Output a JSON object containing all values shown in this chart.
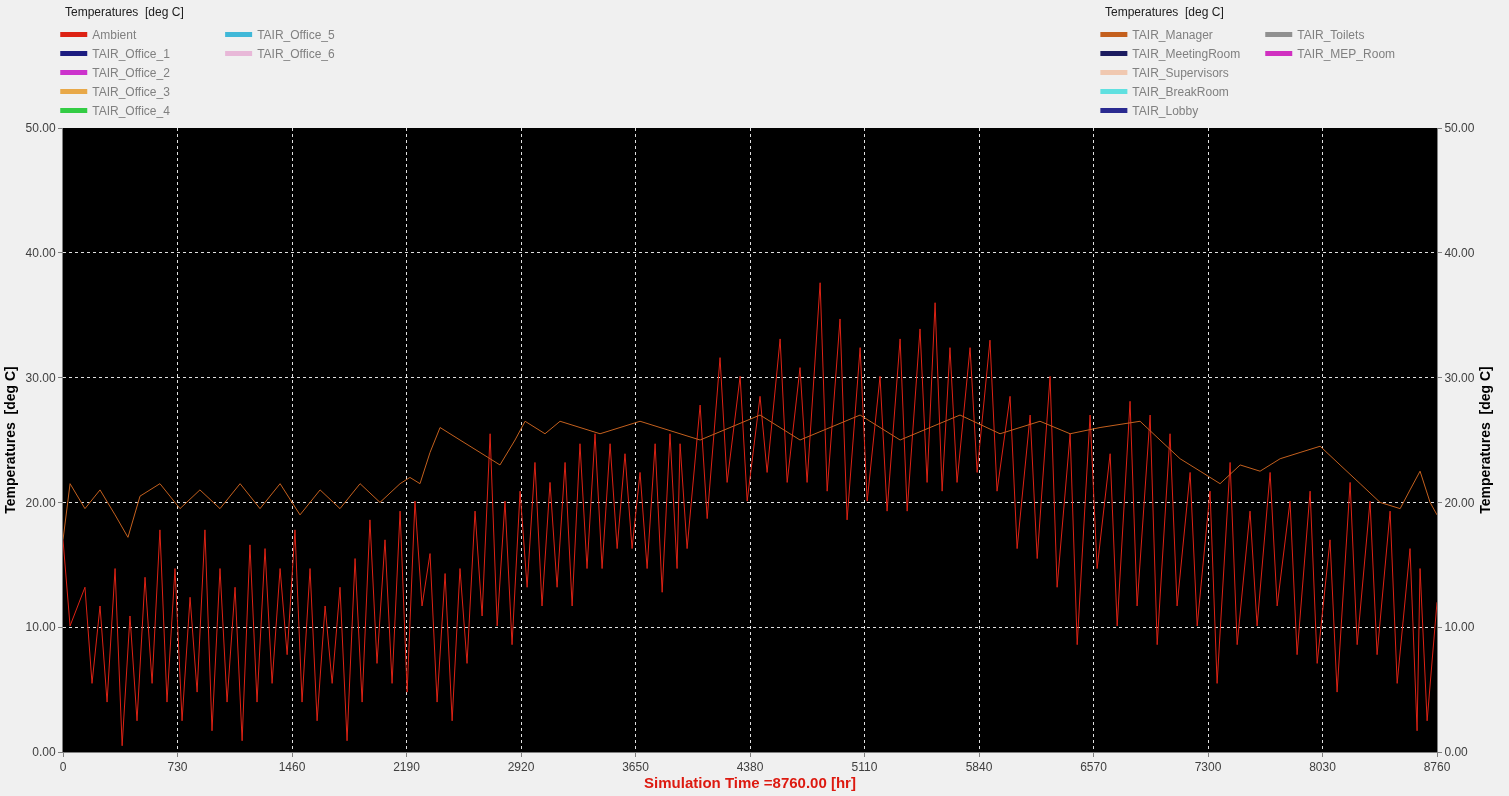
{
  "chart_data": {
    "type": "line",
    "xlabel": "Simulation Time =8760.00 [hr]",
    "ylabel": "Temperatures  [deg C]",
    "y2label": "Temperatures  [deg C]",
    "legend_title": "Temperatures  [deg C]",
    "xlim": [
      0,
      8760
    ],
    "xticks": [
      0,
      730,
      1460,
      2190,
      2920,
      3650,
      4380,
      5110,
      5840,
      6570,
      7300,
      8030,
      8760
    ],
    "ylim": [
      0,
      50
    ],
    "yticks": [
      {
        "value": 0,
        "label": "0.00"
      },
      {
        "value": 10,
        "label": "10.00"
      },
      {
        "value": 20,
        "label": "20.00"
      },
      {
        "value": 30,
        "label": "30.00"
      },
      {
        "value": 40,
        "label": "40.00"
      },
      {
        "value": 50,
        "label": "50.00"
      }
    ],
    "y2lim": [
      0,
      50
    ],
    "y2ticks": [
      {
        "value": 0,
        "label": "0.00"
      },
      {
        "value": 10,
        "label": "10.00"
      },
      {
        "value": 20,
        "label": "20.00"
      },
      {
        "value": 30,
        "label": "30.00"
      },
      {
        "value": 40,
        "label": "40.00"
      },
      {
        "value": 50,
        "label": "50.00"
      }
    ],
    "grid": true,
    "legend": "top",
    "marker": "none",
    "line_style": "solid",
    "series": [
      {
        "name": "Ambient",
        "color": "#dd2214",
        "x": [
          0,
          45,
          140,
          185,
          236,
          281,
          332,
          377,
          427,
          472,
          523,
          568,
          618,
          663,
          714,
          759,
          810,
          855,
          905,
          950,
          1001,
          1046,
          1097,
          1142,
          1192,
          1237,
          1288,
          1333,
          1384,
          1429,
          1479,
          1524,
          1575,
          1620,
          1671,
          1716,
          1766,
          1811,
          1862,
          1907,
          1957,
          2002,
          2053,
          2098,
          2149,
          2194,
          2244,
          2289,
          2340,
          2385,
          2436,
          2481,
          2531,
          2576,
          2627,
          2672,
          2723,
          2768,
          2818,
          2863,
          2914,
          2959,
          3009,
          3054,
          3105,
          3150,
          3201,
          3246,
          3296,
          3341,
          3392,
          3437,
          3488,
          3533,
          3583,
          3628,
          3679,
          3724,
          3775,
          3820,
          3870,
          3915,
          3934,
          3979,
          4062,
          4107,
          4189,
          4234,
          4317,
          4362,
          4444,
          4489,
          4572,
          4617,
          4699,
          4744,
          4827,
          4872,
          4954,
          4999,
          5082,
          5127,
          5209,
          5254,
          5337,
          5382,
          5464,
          5509,
          5560,
          5605,
          5655,
          5700,
          5783,
          5828,
          5910,
          5955,
          6038,
          6083,
          6166,
          6211,
          6293,
          6338,
          6421,
          6466,
          6548,
          6593,
          6676,
          6721,
          6803,
          6848,
          6931,
          6976,
          7058,
          7103,
          7186,
          7231,
          7313,
          7358,
          7441,
          7486,
          7568,
          7613,
          7696,
          7741,
          7823,
          7868,
          7951,
          7996,
          8078,
          8123,
          8206,
          8251,
          8333,
          8378,
          8461,
          8506,
          8588,
          8633,
          8652,
          8697,
          8760
        ],
        "values": [
          17,
          10.1,
          13.2,
          5.5,
          11.7,
          4.0,
          14.7,
          0.5,
          10.9,
          2.5,
          14.0,
          5.5,
          17.8,
          4.0,
          14.7,
          2.5,
          12.4,
          4.8,
          17.8,
          1.7,
          14.7,
          4.0,
          13.2,
          0.9,
          16.6,
          4.0,
          16.3,
          5.5,
          14.7,
          7.8,
          17.8,
          4.0,
          14.7,
          2.5,
          11.7,
          5.5,
          13.2,
          0.9,
          15.5,
          4.0,
          18.6,
          7.1,
          17.0,
          5.5,
          19.3,
          4.8,
          20.1,
          11.7,
          15.9,
          4.0,
          14.3,
          2.5,
          14.7,
          7.1,
          19.3,
          10.9,
          25.5,
          10.1,
          20.1,
          8.6,
          20.9,
          13.2,
          23.2,
          11.7,
          21.6,
          13.2,
          23.2,
          11.7,
          24.7,
          14.7,
          25.5,
          14.7,
          24.7,
          16.3,
          23.9,
          16.3,
          22.4,
          14.7,
          24.7,
          12.8,
          25.5,
          14.7,
          24.7,
          16.3,
          27.8,
          18.7,
          31.6,
          21.6,
          30.1,
          20.1,
          28.5,
          22.4,
          33.1,
          21.6,
          30.8,
          21.6,
          37.6,
          20.9,
          34.7,
          18.6,
          32.4,
          20.1,
          30.1,
          19.3,
          33.1,
          19.3,
          33.9,
          21.6,
          36.0,
          20.9,
          32.4,
          21.6,
          32.4,
          22.4,
          33.0,
          20.9,
          28.5,
          16.3,
          27.0,
          15.5,
          30.1,
          13.2,
          25.5,
          8.6,
          27.0,
          14.7,
          23.9,
          10.1,
          28.1,
          11.7,
          27.0,
          8.6,
          25.5,
          11.7,
          22.4,
          10.1,
          20.9,
          5.5,
          23.2,
          8.6,
          19.3,
          10.1,
          22.4,
          11.7,
          20.1,
          7.8,
          20.9,
          7.1,
          17.0,
          4.8,
          21.6,
          8.6,
          20.1,
          7.8,
          19.3,
          5.5,
          16.3,
          1.7,
          14.7,
          2.5,
          12
        ]
      },
      {
        "name": "TAIR_Office_1",
        "color": "#1c1c80"
      },
      {
        "name": "TAIR_Office_2",
        "color": "#cc33cc"
      },
      {
        "name": "TAIR_Office_3",
        "color": "#e8a848"
      },
      {
        "name": "TAIR_Office_4",
        "color": "#33cc44"
      },
      {
        "name": "TAIR_Office_5",
        "color": "#40b8d8"
      },
      {
        "name": "TAIR_Office_6",
        "color": "#e8b8d8"
      },
      {
        "name": "TAIR_Manager",
        "color": "#c4601e",
        "axis": "y2",
        "x": [
          0,
          45,
          140,
          236,
          332,
          414,
          491,
          618,
          746,
          873,
          1001,
          1129,
          1256,
          1384,
          1511,
          1639,
          1766,
          1894,
          2021,
          2149,
          2212,
          2276,
          2340,
          2404,
          2531,
          2659,
          2786,
          2882,
          2946,
          3073,
          3169,
          3424,
          3679,
          4062,
          4444,
          4699,
          5082,
          5337,
          5719,
          5974,
          6229,
          6421,
          6612,
          6867,
          6994,
          7122,
          7250,
          7377,
          7505,
          7632,
          7760,
          7887,
          8015,
          8142,
          8270,
          8397,
          8525,
          8588,
          8652,
          8716,
          8760
        ],
        "values": [
          17,
          21.5,
          19.5,
          21,
          19,
          17.2,
          20.5,
          21.5,
          19.5,
          21,
          19.5,
          21.5,
          19.5,
          21.5,
          19,
          21,
          19.5,
          21.5,
          20,
          21.5,
          22,
          21.5,
          24,
          26,
          25,
          24,
          23,
          25,
          26.5,
          25.5,
          26.5,
          25.5,
          26.5,
          25,
          27,
          25,
          27,
          25,
          27,
          25.5,
          26.5,
          25.5,
          26,
          26.5,
          25,
          23.5,
          22.5,
          21.5,
          23,
          22.5,
          23.5,
          24,
          24.5,
          23,
          21.5,
          20,
          19.5,
          21,
          22.5,
          20,
          19
        ]
      },
      {
        "name": "TAIR_MeetingRoom",
        "color": "#1c1c60",
        "axis": "y2"
      },
      {
        "name": "TAIR_Supervisors",
        "color": "#f0c8b0",
        "axis": "y2"
      },
      {
        "name": "TAIR_BreakRoom",
        "color": "#60e0e0",
        "axis": "y2"
      },
      {
        "name": "TAIR_Lobby",
        "color": "#2a2a90",
        "axis": "y2"
      },
      {
        "name": "TAIR_Toilets",
        "color": "#909090",
        "axis": "y2"
      },
      {
        "name": "TAIR_MEP_Room",
        "color": "#d030c0",
        "axis": "y2"
      }
    ]
  }
}
